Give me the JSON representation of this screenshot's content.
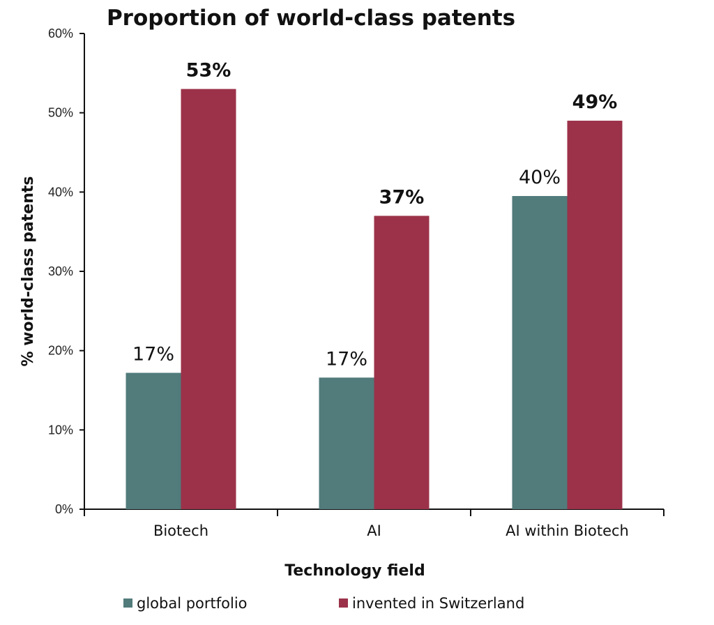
{
  "chart_data": {
    "type": "bar",
    "title": "Proportion of world-class patents",
    "xlabel": "Technology field",
    "ylabel": "% world-class patents",
    "categories": [
      "Biotech",
      "AI",
      "AI within Biotech"
    ],
    "series": [
      {
        "name": "global portfolio",
        "color": "#527b7b",
        "values": [
          17.2,
          16.6,
          39.5
        ],
        "labels": [
          "17%",
          "17%",
          "40%"
        ]
      },
      {
        "name": "invented in Switzerland",
        "color": "#9b3249",
        "values": [
          53,
          37,
          49
        ],
        "labels": [
          "53%",
          "37%",
          "49%"
        ]
      }
    ],
    "ylim": [
      0,
      60
    ],
    "yticks": [
      0,
      10,
      20,
      30,
      40,
      50,
      60
    ],
    "ytick_labels": [
      "0%",
      "10%",
      "20%",
      "30%",
      "40%",
      "50%",
      "60%"
    ],
    "grid": false,
    "legend_position": "bottom"
  }
}
